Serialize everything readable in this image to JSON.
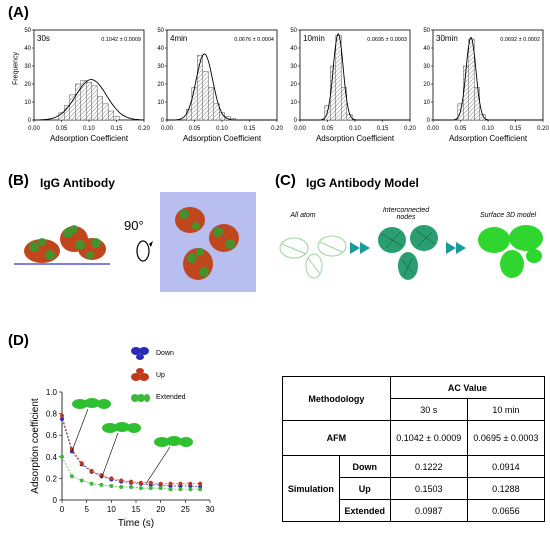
{
  "panel_a": {
    "label": "(A)",
    "ylabel": "Frequency",
    "xlabel": "Adsorption Coefficient",
    "x_ticks": [
      "0.00",
      "0.05",
      "0.10",
      "0.15",
      "0.20"
    ],
    "y_ticks": [
      "0",
      "10",
      "20",
      "30",
      "40",
      "50"
    ]
  },
  "chart_data": [
    {
      "type": "histogram",
      "title": "30s",
      "annotation": "0.1042 ± 0.0009",
      "xlim": [
        0,
        0.2
      ],
      "ylim": [
        0,
        50
      ],
      "x": [
        0.05,
        0.06,
        0.07,
        0.08,
        0.09,
        0.1,
        0.11,
        0.12,
        0.13,
        0.14,
        0.15
      ],
      "values": [
        4,
        8,
        14,
        20,
        22,
        21,
        19,
        13,
        9,
        5,
        2
      ],
      "fit_mean": 0.104
    },
    {
      "type": "histogram",
      "title": "4min",
      "annotation": "0.0676 ± 0.0004",
      "xlim": [
        0,
        0.2
      ],
      "ylim": [
        0,
        50
      ],
      "x": [
        0.04,
        0.05,
        0.06,
        0.07,
        0.08,
        0.09,
        0.1,
        0.11,
        0.12
      ],
      "values": [
        6,
        18,
        36,
        27,
        18,
        9,
        4,
        2,
        1
      ],
      "fit_mean": 0.068
    },
    {
      "type": "histogram",
      "title": "10min",
      "annotation": "0.0695 ± 0.0003",
      "xlim": [
        0,
        0.2
      ],
      "ylim": [
        0,
        50
      ],
      "x": [
        0.05,
        0.06,
        0.07,
        0.08,
        0.09
      ],
      "values": [
        8,
        30,
        47,
        18,
        3
      ],
      "fit_mean": 0.0695
    },
    {
      "type": "histogram",
      "title": "30min",
      "annotation": "0.0692 ± 0.0002",
      "xlim": [
        0,
        0.2
      ],
      "ylim": [
        0,
        50
      ],
      "x": [
        0.05,
        0.06,
        0.07,
        0.08,
        0.09
      ],
      "values": [
        9,
        30,
        45,
        18,
        3
      ],
      "fit_mean": 0.069
    },
    {
      "type": "line",
      "ylabel": "Adsorption coefficient",
      "xlabel": "Time (s)",
      "xlim": [
        0,
        30
      ],
      "ylim": [
        0,
        1.0
      ],
      "x_ticks": [
        "0",
        "5",
        "10",
        "15",
        "20",
        "25",
        "30"
      ],
      "y_ticks": [
        "0",
        "0.2",
        "0.4",
        "0.6",
        "0.8",
        "1.0"
      ],
      "series": [
        {
          "name": "Down",
          "color": "#2b2bb8",
          "x": [
            0,
            2,
            4,
            6,
            8,
            10,
            12,
            14,
            16,
            18,
            20,
            22,
            24,
            26,
            28
          ],
          "values": [
            0.75,
            0.45,
            0.33,
            0.26,
            0.22,
            0.19,
            0.17,
            0.16,
            0.15,
            0.14,
            0.14,
            0.13,
            0.13,
            0.13,
            0.12
          ]
        },
        {
          "name": "Up",
          "color": "#c0391b",
          "x": [
            0,
            2,
            4,
            6,
            8,
            10,
            12,
            14,
            16,
            18,
            20,
            22,
            24,
            26,
            28
          ],
          "values": [
            0.78,
            0.47,
            0.34,
            0.27,
            0.23,
            0.2,
            0.18,
            0.17,
            0.16,
            0.16,
            0.15,
            0.15,
            0.15,
            0.15,
            0.15
          ]
        },
        {
          "name": "Extended",
          "color": "#3cb83c",
          "x": [
            0,
            2,
            4,
            6,
            8,
            10,
            12,
            14,
            16,
            18,
            20,
            22,
            24,
            26,
            28
          ],
          "values": [
            0.4,
            0.22,
            0.18,
            0.15,
            0.14,
            0.13,
            0.12,
            0.12,
            0.11,
            0.11,
            0.11,
            0.1,
            0.1,
            0.1,
            0.1
          ]
        }
      ]
    }
  ],
  "panel_b": {
    "label": "(B)",
    "title": "IgG Antibody",
    "rotation": "90°"
  },
  "panel_c": {
    "label": "(C)",
    "title": "IgG Antibody Model",
    "steps": [
      "All atom",
      "Interconnected nodes",
      "Surface 3D model"
    ]
  },
  "panel_d": {
    "label": "(D)"
  },
  "table": {
    "header_method": "Methodology",
    "header_ac": "AC Value",
    "col_30s": "30 s",
    "col_10min": "10 min",
    "afm_label": "AFM",
    "afm_30s": "0.1042 ± 0.0009",
    "afm_10min": "0.0695 ± 0.0003",
    "sim_label": "Simulation",
    "rows": [
      {
        "name": "Down",
        "v1": "0.1222",
        "v2": "0.0914"
      },
      {
        "name": "Up",
        "v1": "0.1503",
        "v2": "0.1288"
      },
      {
        "name": "Extended",
        "v1": "0.0987",
        "v2": "0.0656"
      }
    ]
  }
}
